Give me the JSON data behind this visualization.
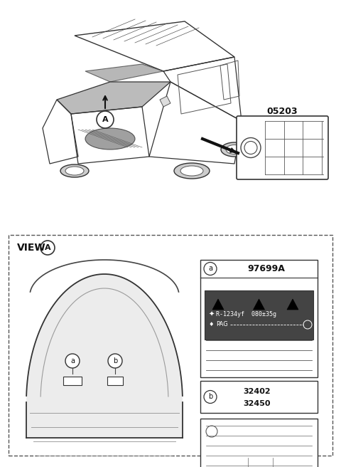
{
  "bg_color": "#ffffff",
  "title_part_number": "05203",
  "label_a_number": "97699A",
  "label_b_numbers": [
    "32402",
    "32450"
  ],
  "view_label": "VIEW",
  "circle_label": "A",
  "callout_a": "a",
  "callout_b": "b",
  "refrigerant_text": "R-1234yf  080±35g",
  "pag_text": "PAG",
  "fig_width": 4.8,
  "fig_height": 6.56,
  "dpi": 100
}
